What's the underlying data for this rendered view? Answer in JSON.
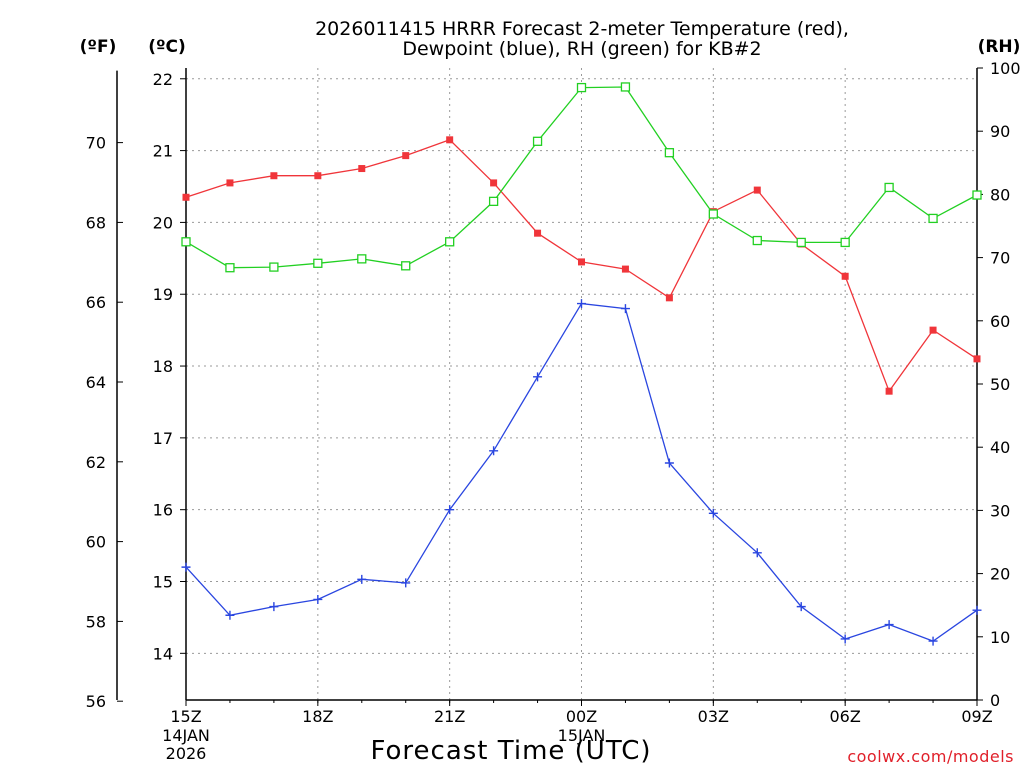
{
  "chart_data": {
    "type": "line",
    "title_line1": "2026011415 HRRR Forecast 2-meter Temperature (red),",
    "title_line2": "Dewpoint (blue), RH (green) for KB#2",
    "units": {
      "fahrenheit": "(ºF)",
      "celsius": "(ºC)",
      "rh": "(RH)"
    },
    "xlabel": "Forecast Time (UTC)",
    "credit": "coolwx.com/models",
    "x_ticks": [
      {
        "hour": 0,
        "label": "15Z",
        "sub1": "14JAN",
        "sub2": "2026"
      },
      {
        "hour": 3,
        "label": "18Z",
        "sub1": "",
        "sub2": ""
      },
      {
        "hour": 6,
        "label": "21Z",
        "sub1": "",
        "sub2": ""
      },
      {
        "hour": 9,
        "label": "00Z",
        "sub1": "15JAN",
        "sub2": ""
      },
      {
        "hour": 12,
        "label": "03Z",
        "sub1": "",
        "sub2": ""
      },
      {
        "hour": 15,
        "label": "06Z",
        "sub1": "",
        "sub2": ""
      },
      {
        "hour": 18,
        "label": "09Z",
        "sub1": "",
        "sub2": ""
      }
    ],
    "x_range": [
      0,
      18
    ],
    "celsius_axis": {
      "range": [
        13.35,
        22.15
      ],
      "ticks": [
        14,
        15,
        16,
        17,
        18,
        19,
        20,
        21,
        22
      ]
    },
    "fahrenheit_axis": {
      "ticks": [
        56,
        58,
        60,
        62,
        64,
        66,
        68,
        70
      ]
    },
    "rh_axis": {
      "range": [
        0,
        100
      ],
      "ticks": [
        0,
        10,
        20,
        30,
        40,
        50,
        60,
        70,
        80,
        90,
        100
      ]
    },
    "hours": [
      0,
      1,
      2,
      3,
      4,
      5,
      6,
      7,
      8,
      9,
      10,
      11,
      12,
      13,
      14,
      15,
      16,
      17,
      18
    ],
    "series": [
      {
        "name": "Temperature",
        "axis": "celsius",
        "color": "#f0353a",
        "marker": "filled-square",
        "values": [
          20.35,
          20.55,
          20.65,
          20.65,
          20.75,
          20.93,
          21.15,
          20.55,
          19.85,
          19.45,
          19.35,
          18.95,
          20.15,
          20.45,
          19.7,
          19.25,
          17.65,
          18.5,
          18.1
        ]
      },
      {
        "name": "Dewpoint",
        "axis": "celsius",
        "color": "#2a46e0",
        "marker": "plus",
        "values": [
          15.2,
          14.53,
          14.65,
          14.75,
          15.03,
          14.98,
          16.0,
          16.82,
          17.85,
          18.87,
          18.8,
          16.65,
          15.95,
          15.4,
          14.65,
          14.2,
          14.4,
          14.17,
          14.6
        ]
      },
      {
        "name": "RH",
        "axis": "rh",
        "color": "#22d022",
        "marker": "open-square",
        "values": [
          72.5,
          68.4,
          68.5,
          69.1,
          69.8,
          68.7,
          72.5,
          78.9,
          88.4,
          96.9,
          97.0,
          86.6,
          76.9,
          72.7,
          72.4,
          72.4,
          81.1,
          76.2,
          79.9
        ]
      }
    ]
  }
}
